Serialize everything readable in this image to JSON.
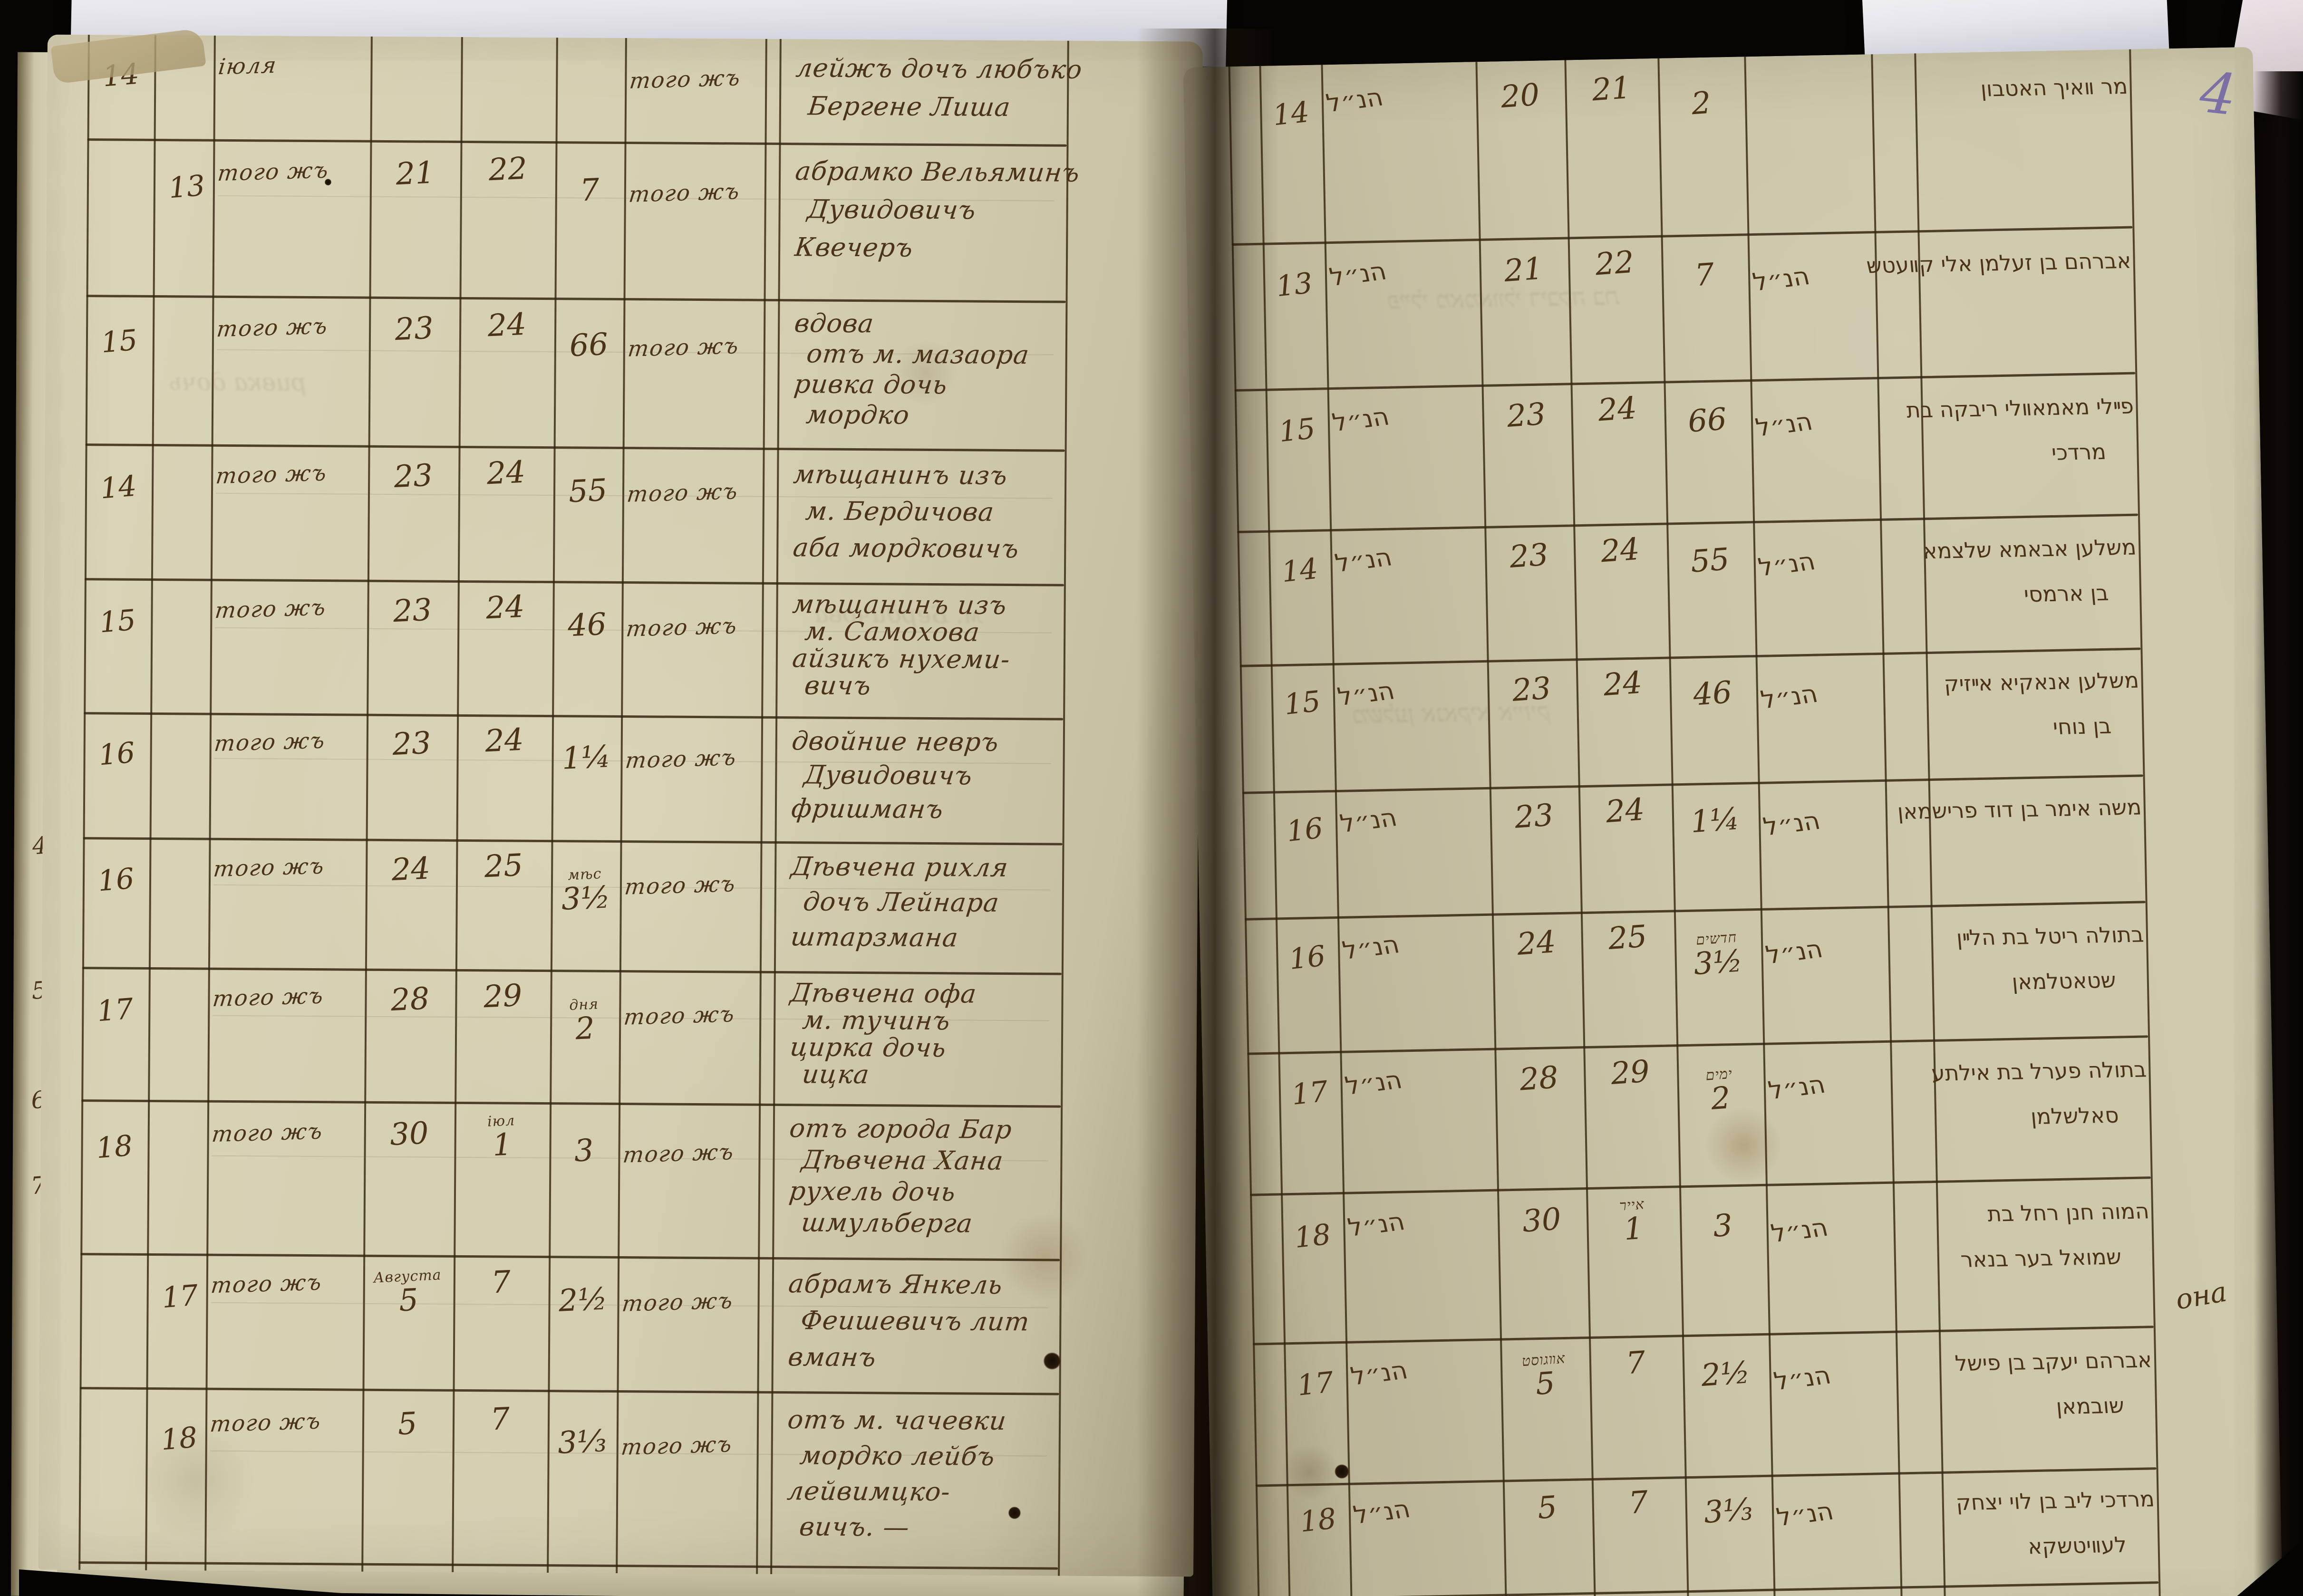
{
  "photo": {
    "page_number": "4",
    "margin_note": "она",
    "underlay_page_numbers": [
      "4.",
      "5",
      "6.",
      "7."
    ],
    "colors": {
      "background": "#070503",
      "paper_left": "#d5cfb2",
      "paper_right": "#c9c3a9",
      "ink": "#4a3317",
      "table_line": "#35260f",
      "page_number_ink": "#6e61a6",
      "white_sheet": "#edecef"
    }
  },
  "left_page": {
    "language": "russian-cursive",
    "rows": [
      {
        "no": "14",
        "no_col": "outer",
        "month": "іюля",
        "month2": "того жъ",
        "name": [
          "лейжъ дочъ любъко",
          "Бергене Лиша"
        ]
      },
      {
        "no": "13",
        "no_col": "inner",
        "month": "того жъ",
        "d1": "21",
        "d2": "22",
        "age": "7",
        "month2": "того жъ",
        "name": [
          "абрамко Вельяминъ",
          "Дувидовичъ",
          "Квечеръ"
        ]
      },
      {
        "no": "15",
        "no_col": "outer",
        "month": "того жъ",
        "d1": "23",
        "d2": "24",
        "age": "66",
        "month2": "того жъ",
        "name": [
          "вдова",
          "отъ м. мазаора",
          "ривка дочь",
          "мордко"
        ]
      },
      {
        "no": "14",
        "no_col": "outer",
        "month": "того жъ",
        "d1": "23",
        "d2": "24",
        "age": "55",
        "month2": "того жъ",
        "name": [
          "мѣщанинъ изъ",
          "м. Бердичова",
          "аба мордковичъ"
        ]
      },
      {
        "no": "15",
        "no_col": "outer",
        "month": "того жъ",
        "d1": "23",
        "d2": "24",
        "age": "46",
        "month2": "того жъ",
        "name": [
          "мѣщанинъ изъ",
          "м. Самохова",
          "айзикъ нухеми-",
          "вичъ"
        ]
      },
      {
        "no": "16",
        "no_col": "outer",
        "month": "того жъ",
        "d1": "23",
        "d2": "24",
        "age": "1¼",
        "month2": "того жъ",
        "name": [
          "двойние невръ",
          "Дувидовичъ",
          "фришманъ"
        ]
      },
      {
        "no": "16",
        "no_col": "outer",
        "month": "того жъ",
        "d1": "24",
        "d2": "25",
        "age": "3½",
        "age_sup": "мѣс",
        "month2": "того жъ",
        "name": [
          "Дѣвчена рихля",
          "дочъ Лейнара",
          "штарзмана"
        ]
      },
      {
        "no": "17",
        "no_col": "outer",
        "month": "того жъ",
        "d1": "28",
        "d2": "29",
        "age": "2",
        "age_sup": "дня",
        "month2": "того жъ",
        "name": [
          "Дѣвчена офа",
          "м. тучинъ",
          "цирка дочь",
          "ицка"
        ]
      },
      {
        "no": "18",
        "no_col": "outer",
        "month": "того жъ",
        "d1": "30",
        "d2": "1",
        "d2_sup": "іюл",
        "age": "3",
        "month2": "того жъ",
        "name": [
          "отъ города Бар",
          "Дѣвчена Хана",
          "рухель дочь",
          "шмульберга"
        ]
      },
      {
        "no": "17",
        "no_col": "inner",
        "month": "того жъ",
        "d1": "5",
        "d1_sup": "Августа",
        "d2": "7",
        "age": "2½",
        "month2": "того жъ",
        "name": [
          "абрамъ Янкель",
          "Феишевичъ лит",
          "вманъ"
        ]
      },
      {
        "no": "18",
        "no_col": "inner",
        "month": "того жъ",
        "d1": "5",
        "d2": "7",
        "age": "3⅓",
        "month2": "того жъ",
        "name": [
          "отъ м. чачевки",
          "мордко лейбъ",
          "лейвимцко-",
          "вичъ. —"
        ]
      }
    ]
  },
  "right_page": {
    "language": "hebrew-cursive",
    "rows": [
      {
        "no": "14",
        "month": "הנ״ל",
        "d1": "20",
        "d2": "21",
        "age": "2",
        "name": [
          "מר װאיך האטבון"
        ]
      },
      {
        "no": "13",
        "month": "הנ״ל",
        "d1": "21",
        "d2": "22",
        "age": "7",
        "month2": "הנ״ל",
        "name": [
          "אברהם בן זעלמן אלי קװעטש"
        ]
      },
      {
        "no": "15",
        "month": "הנ״ל",
        "d1": "23",
        "d2": "24",
        "age": "66",
        "month2": "הנ״ל",
        "name": [
          "פײלי מאמאװלי ריבקה בת",
          "מרדכי"
        ]
      },
      {
        "no": "14",
        "month": "הנ״ל",
        "d1": "23",
        "d2": "24",
        "age": "55",
        "month2": "הנ״ל",
        "name": [
          "משלען אבאמא שלצמא",
          "בן ארמסי"
        ]
      },
      {
        "no": "15",
        "month": "הנ״ל",
        "d1": "23",
        "d2": "24",
        "age": "46",
        "month2": "הנ״ל",
        "name": [
          "משלען אנאקיא אײזיק",
          "בן נוחי"
        ]
      },
      {
        "no": "16",
        "month": "הנ״ל",
        "d1": "23",
        "d2": "24",
        "age": "1¼",
        "month2": "הנ״ל",
        "name": [
          "משה אימר בן דוד פרישמאן"
        ]
      },
      {
        "no": "16",
        "month": "הנ״ל",
        "d1": "24",
        "d2": "25",
        "age": "3½",
        "age_sup": "חדשים",
        "month2": "הנ״ל",
        "name": [
          "בתולה ריטל בת הלײן",
          "שטאטלמאן"
        ]
      },
      {
        "no": "17",
        "month": "הנ״ל",
        "d1": "28",
        "d2": "29",
        "age": "2",
        "age_sup": "ימים",
        "month2": "הנ״ל",
        "name": [
          "בתולה פערל בת אילתע",
          "סאלשלמן"
        ]
      },
      {
        "no": "18",
        "month": "הנ״ל",
        "d1": "30",
        "d2": "1",
        "d2_sup": "אייר",
        "age": "3",
        "month2": "הנ״ל",
        "name": [
          "המוה חנן רחל בת",
          "שמואל בער בנאר"
        ]
      },
      {
        "no": "17",
        "month": "הנ״ל",
        "d1": "5",
        "d1_sup": "אװגוסט",
        "d2": "7",
        "age": "2½",
        "month2": "הנ״ל",
        "name": [
          "אברהם יעקב בן פישל",
          "שובמאן"
        ]
      },
      {
        "no": "18",
        "month": "הנ״ל",
        "d1": "5",
        "d2": "7",
        "age": "3⅓",
        "month2": "הנ״ל",
        "name": [
          "מרדכי ליב בן לוי יצחק",
          "לעװיטשקא"
        ]
      }
    ]
  }
}
